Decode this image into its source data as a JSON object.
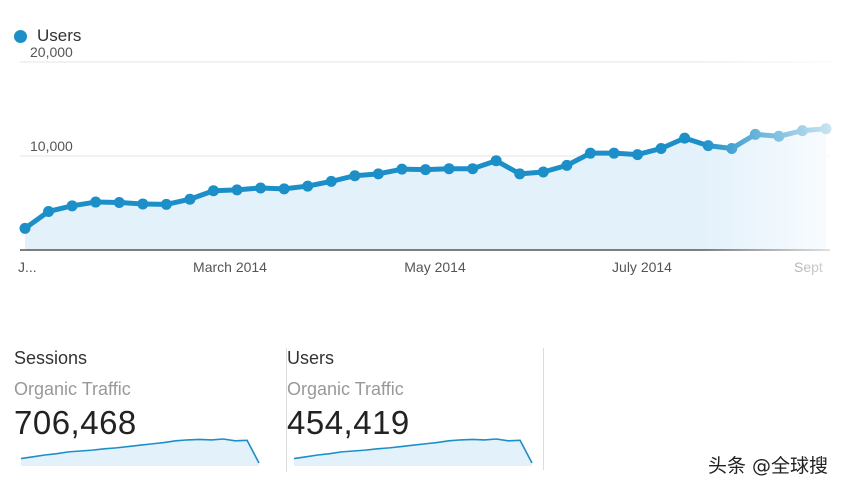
{
  "colors": {
    "line": "#1d8fc8",
    "fill": "#e3f1fb",
    "grid": "#e6e6e6",
    "axis": "#555555"
  },
  "legend": {
    "label": "Users",
    "icon": "legend-dot-icon"
  },
  "chart_data": {
    "type": "line",
    "ylim": [
      0,
      20000
    ],
    "yticks": [
      {
        "value": 10000,
        "label": "10,000"
      },
      {
        "value": 20000,
        "label": "20,000"
      }
    ],
    "xticks": [
      "J...",
      "March 2014",
      "May 2014",
      "July 2014",
      "Sept"
    ],
    "series": [
      {
        "name": "Users",
        "values": [
          2300,
          4100,
          4700,
          5100,
          5050,
          4900,
          4850,
          5400,
          6300,
          6400,
          6600,
          6500,
          6800,
          7300,
          7900,
          8100,
          8600,
          8550,
          8650,
          8650,
          9500,
          8100,
          8300,
          9000,
          10300,
          10300,
          10150,
          10800,
          11900,
          11100,
          10800,
          12300,
          12100,
          12700,
          12900
        ]
      }
    ]
  },
  "cards": [
    {
      "title": "Sessions",
      "subtitle": "Organic Traffic",
      "value": "706,468",
      "spark": [
        40,
        44,
        48,
        51,
        55,
        57,
        59,
        62,
        64,
        67,
        70,
        73,
        76,
        80,
        82,
        83,
        82,
        84,
        80,
        81,
        30
      ]
    },
    {
      "title": "Users",
      "subtitle": "Organic Traffic",
      "value": "454,419",
      "spark": [
        40,
        44,
        48,
        51,
        55,
        57,
        59,
        62,
        64,
        67,
        70,
        73,
        76,
        80,
        82,
        83,
        82,
        84,
        80,
        81,
        30
      ]
    }
  ],
  "watermark": "头条 @全球搜"
}
